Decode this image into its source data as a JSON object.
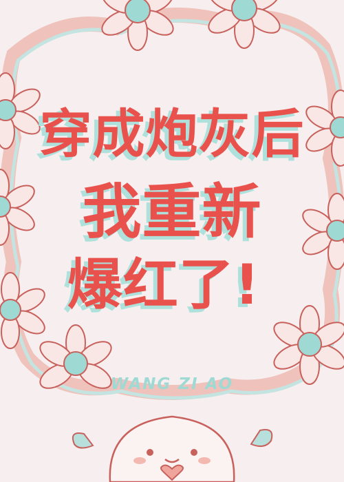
{
  "cover": {
    "title_line_1": "穿成炮灰后",
    "title_line_2": "我重新",
    "title_line_3": "爆红了",
    "exclamation": "!",
    "author": "WANG ZI AO"
  },
  "colors": {
    "background": "#f7efef",
    "title_red": "#e9524c",
    "title_shadow": "#aee0dc",
    "frame_pink": "#e8a9a2",
    "frame_teal": "#b7e0dc",
    "petal_outline": "#c8605c"
  }
}
